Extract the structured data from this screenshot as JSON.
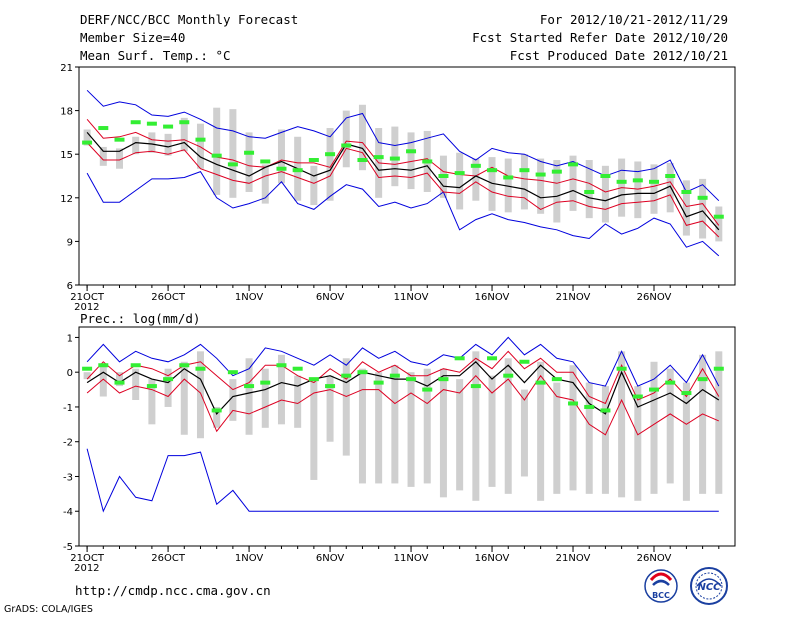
{
  "header": {
    "title": "DERF/NCC/BCC Monthly Forecast",
    "member_size": "Member Size=40",
    "variable": "Mean Surf. Temp.: °C",
    "period": "For 2012/10/21-2012/11/29",
    "started": "Fcst Started Refer Date 2012/10/20",
    "produced": "Fcst Produced Date 2012/10/21"
  },
  "footer": {
    "url": "http://cmdp.ncc.cma.gov.cn",
    "credit": "GrADS: COLA/IGES",
    "logo_bcc": "BCC",
    "logo_ncc": "NCC"
  },
  "colors": {
    "envelope": "#0000dd",
    "spread": "#dd0022",
    "mean": "#000000",
    "box": "#cfcfcf",
    "marker": "#33ee33"
  },
  "chart_data": [
    {
      "type": "line",
      "title": "Mean Surf. Temp.: °C",
      "x": [
        1,
        2,
        3,
        4,
        5,
        6,
        7,
        8,
        9,
        10,
        11,
        12,
        13,
        14,
        15,
        16,
        17,
        18,
        19,
        20,
        21,
        22,
        23,
        24,
        25,
        26,
        27,
        28,
        29,
        30,
        31,
        32,
        33,
        34,
        35,
        36,
        37,
        38,
        39,
        40
      ],
      "xtick_positions": [
        1,
        6,
        11,
        16,
        21,
        26,
        31,
        36
      ],
      "xtick_labels": [
        "21OCT",
        "26OCT",
        "1NOV",
        "6NOV",
        "11NOV",
        "16NOV",
        "21NOV",
        "26NOV"
      ],
      "xtick_year": "2012",
      "ylim": [
        6,
        21
      ],
      "yticks": [
        6,
        9,
        12,
        15,
        18,
        21
      ],
      "series": [
        {
          "name": "max",
          "values": [
            19.4,
            18.3,
            18.6,
            18.4,
            17.7,
            17.6,
            17.9,
            17.4,
            16.8,
            16.6,
            16.2,
            16.1,
            16.5,
            16.9,
            16.6,
            16.2,
            17.5,
            17.8,
            15.8,
            15.6,
            15.8,
            16.1,
            16.4,
            15.2,
            14.6,
            15.4,
            15.1,
            15.0,
            14.5,
            14.2,
            14.5,
            14.0,
            13.5,
            13.9,
            13.8,
            14.0,
            14.6,
            12.4,
            12.9,
            11.8
          ]
        },
        {
          "name": "upper",
          "values": [
            17.4,
            16.1,
            16.2,
            16.5,
            16.0,
            15.9,
            16.0,
            15.5,
            14.8,
            14.6,
            14.2,
            14.1,
            14.6,
            14.4,
            14.4,
            14.1,
            15.9,
            15.8,
            14.4,
            14.3,
            14.5,
            14.7,
            13.8,
            13.6,
            13.5,
            14.1,
            13.5,
            13.3,
            13.2,
            13.0,
            13.3,
            13.0,
            12.4,
            12.7,
            12.6,
            12.8,
            13.1,
            11.4,
            11.6,
            10.1
          ]
        },
        {
          "name": "mean",
          "values": [
            16.5,
            15.2,
            15.2,
            15.8,
            15.7,
            15.5,
            15.8,
            14.8,
            14.3,
            13.9,
            13.5,
            14.1,
            14.5,
            14.0,
            13.5,
            13.9,
            15.7,
            15.4,
            13.9,
            14.0,
            13.9,
            14.2,
            12.8,
            12.7,
            13.5,
            13.0,
            12.8,
            12.6,
            12.0,
            12.1,
            12.5,
            12.0,
            11.8,
            12.2,
            12.3,
            12.3,
            12.8,
            10.7,
            11.1,
            9.8
          ]
        },
        {
          "name": "lower",
          "values": [
            15.8,
            14.6,
            14.6,
            15.1,
            15.2,
            15.0,
            15.3,
            14.0,
            13.6,
            13.2,
            13.0,
            13.5,
            13.8,
            13.4,
            13.0,
            13.5,
            15.4,
            15.1,
            13.4,
            13.5,
            13.4,
            13.7,
            12.4,
            12.3,
            13.1,
            12.4,
            12.1,
            12.0,
            11.2,
            11.7,
            11.8,
            11.4,
            11.2,
            11.6,
            11.7,
            11.8,
            12.2,
            10.1,
            10.4,
            9.3
          ]
        },
        {
          "name": "min",
          "values": [
            13.7,
            11.7,
            11.7,
            12.5,
            13.3,
            13.3,
            13.4,
            13.8,
            12.0,
            11.3,
            11.6,
            12.0,
            13.1,
            11.6,
            11.2,
            12.1,
            12.9,
            12.6,
            11.4,
            11.7,
            11.3,
            11.6,
            12.4,
            9.8,
            10.5,
            10.9,
            10.5,
            10.3,
            10.0,
            9.8,
            9.4,
            9.2,
            10.2,
            9.5,
            9.9,
            10.6,
            10.2,
            8.6,
            9.0,
            8.0
          ]
        },
        {
          "name": "box_top",
          "values": [
            16.7,
            15.5,
            15.4,
            16.2,
            16.5,
            16.4,
            17.5,
            17.1,
            18.2,
            18.1,
            16.5,
            14.3,
            16.7,
            16.2,
            14.2,
            16.8,
            18.0,
            18.4,
            16.8,
            16.9,
            16.5,
            16.6,
            14.9,
            15.1,
            14.7,
            14.8,
            14.7,
            15.0,
            14.7,
            14.6,
            14.9,
            14.6,
            14.2,
            14.7,
            14.5,
            14.3,
            14.4,
            13.2,
            13.3,
            11.4
          ]
        },
        {
          "name": "box_bottom",
          "values": [
            15.6,
            14.2,
            14.0,
            15.0,
            15.1,
            14.9,
            15.2,
            14.0,
            12.2,
            12.0,
            12.4,
            11.6,
            13.0,
            11.8,
            11.5,
            11.8,
            14.1,
            13.9,
            12.0,
            12.8,
            12.6,
            12.4,
            12.0,
            11.2,
            11.8,
            11.1,
            11.0,
            11.2,
            10.9,
            10.3,
            11.1,
            10.6,
            10.3,
            10.7,
            10.6,
            10.9,
            11.0,
            9.4,
            9.2,
            9.0
          ]
        },
        {
          "name": "observed",
          "values": [
            15.8,
            16.8,
            16.0,
            17.2,
            17.1,
            16.9,
            17.2,
            16.0,
            14.9,
            14.3,
            15.1,
            14.5,
            14.0,
            13.9,
            14.6,
            15.0,
            15.6,
            14.6,
            14.8,
            14.7,
            15.2,
            14.5,
            13.5,
            13.7,
            14.2,
            13.9,
            13.4,
            13.9,
            13.6,
            13.8,
            14.3,
            12.4,
            13.5,
            13.1,
            13.2,
            13.1,
            13.5,
            12.4,
            12.0,
            10.7
          ]
        }
      ]
    },
    {
      "type": "line",
      "title": "Prec.: log(mm/d)",
      "x": [
        1,
        2,
        3,
        4,
        5,
        6,
        7,
        8,
        9,
        10,
        11,
        12,
        13,
        14,
        15,
        16,
        17,
        18,
        19,
        20,
        21,
        22,
        23,
        24,
        25,
        26,
        27,
        28,
        29,
        30,
        31,
        32,
        33,
        34,
        35,
        36,
        37,
        38,
        39,
        40
      ],
      "xtick_positions": [
        1,
        6,
        11,
        16,
        21,
        26,
        31,
        36
      ],
      "xtick_labels": [
        "21OCT",
        "26OCT",
        "1NOV",
        "6NOV",
        "11NOV",
        "16NOV",
        "21NOV",
        "26NOV"
      ],
      "xtick_year": "2012",
      "ylim": [
        -5,
        1.3
      ],
      "yticks": [
        -5,
        -4,
        -3,
        -2,
        -1,
        0,
        1
      ],
      "series": [
        {
          "name": "max",
          "values": [
            0.3,
            0.8,
            0.3,
            0.6,
            0.4,
            0.3,
            0.5,
            0.8,
            0.4,
            -0.1,
            0.1,
            0.7,
            0.6,
            0.4,
            0.2,
            0.5,
            0.2,
            0.7,
            0.4,
            0.6,
            0.3,
            0.2,
            0.5,
            0.4,
            0.8,
            0.5,
            1.0,
            0.5,
            0.8,
            0.4,
            0.3,
            -0.3,
            -0.4,
            0.6,
            -0.4,
            -0.2,
            0.2,
            -0.3,
            0.5,
            -0.4
          ]
        },
        {
          "name": "upper",
          "values": [
            -0.2,
            0.3,
            -0.1,
            0.2,
            0.1,
            -0.1,
            0.2,
            0.3,
            -0.1,
            -0.5,
            -0.3,
            0.2,
            0.2,
            -0.1,
            -0.3,
            0.1,
            -0.2,
            0.3,
            0.0,
            0.2,
            -0.1,
            -0.1,
            0.1,
            0.0,
            0.4,
            0.1,
            0.6,
            0.1,
            0.4,
            0.0,
            0.0,
            -0.7,
            -0.9,
            0.2,
            -0.8,
            -0.6,
            -0.2,
            -0.7,
            0.1,
            -0.7
          ]
        },
        {
          "name": "mean",
          "values": [
            -0.3,
            0.0,
            -0.3,
            0.0,
            -0.2,
            -0.3,
            0.1,
            -0.2,
            -1.2,
            -0.7,
            -0.6,
            -0.5,
            -0.3,
            -0.4,
            -0.2,
            -0.1,
            -0.3,
            0.0,
            -0.1,
            -0.2,
            -0.2,
            -0.4,
            -0.1,
            -0.1,
            0.3,
            -0.2,
            0.2,
            -0.3,
            0.2,
            -0.2,
            -0.3,
            -0.9,
            -1.2,
            0.0,
            -1.0,
            -0.8,
            -0.6,
            -0.9,
            -0.5,
            -0.8
          ]
        },
        {
          "name": "lower",
          "values": [
            -0.6,
            -0.2,
            -0.6,
            -0.4,
            -0.5,
            -0.7,
            -0.2,
            -0.6,
            -1.7,
            -1.1,
            -1.2,
            -1.0,
            -0.8,
            -0.9,
            -0.6,
            -0.5,
            -0.7,
            -0.5,
            -0.5,
            -0.9,
            -0.6,
            -0.9,
            -0.5,
            -0.6,
            -0.1,
            -0.6,
            -0.2,
            -0.8,
            -0.1,
            -0.7,
            -0.8,
            -1.5,
            -1.8,
            -0.8,
            -1.8,
            -1.5,
            -1.2,
            -1.5,
            -1.2,
            -1.4
          ]
        },
        {
          "name": "min",
          "values": [
            -2.2,
            -4.0,
            -3.0,
            -3.6,
            -3.7,
            -2.4,
            -2.4,
            -2.3,
            -3.8,
            -3.4,
            -4.0,
            -4.0,
            -4.0,
            -4.0,
            -4.0,
            -4.0,
            -4.0,
            -4.0,
            -4.0,
            -4.0,
            -4.0,
            -4.0,
            -4.0,
            -4.0,
            -4.0,
            -4.0,
            -4.0,
            -4.0,
            -4.0,
            -4.0,
            -4.0,
            -4.0,
            -4.0,
            -4.0,
            -4.0,
            -4.0,
            -4.0,
            -4.0,
            -4.0,
            -4.0
          ]
        },
        {
          "name": "box_top",
          "values": [
            0.0,
            0.2,
            0.0,
            0.1,
            -0.2,
            0.1,
            0.3,
            0.6,
            -1.0,
            -0.2,
            0.4,
            0.1,
            0.5,
            -0.1,
            -0.2,
            -0.1,
            0.4,
            0.1,
            0.0,
            0.2,
            0.0,
            0.1,
            0.1,
            -0.2,
            0.6,
            -0.1,
            0.4,
            -0.5,
            0.3,
            -0.3,
            0.2,
            -0.3,
            -0.4,
            0.6,
            -0.4,
            0.3,
            0.1,
            -0.3,
            0.5,
            0.6
          ]
        },
        {
          "name": "box_bottom",
          "values": [
            -0.2,
            -0.7,
            -0.4,
            -0.8,
            -1.5,
            -1.0,
            -1.8,
            -1.9,
            -1.6,
            -1.4,
            -1.8,
            -1.6,
            -1.5,
            -1.6,
            -3.1,
            -2.0,
            -2.4,
            -3.2,
            -3.2,
            -3.2,
            -3.3,
            -3.2,
            -3.6,
            -3.4,
            -3.7,
            -3.3,
            -3.5,
            -3.0,
            -3.7,
            -3.5,
            -3.4,
            -3.5,
            -3.5,
            -3.6,
            -3.7,
            -3.5,
            -3.2,
            -3.7,
            -3.5,
            -3.5
          ]
        },
        {
          "name": "observed",
          "values": [
            0.1,
            0.2,
            -0.3,
            0.2,
            -0.4,
            -0.2,
            0.2,
            0.1,
            -1.1,
            0.0,
            -0.4,
            -0.3,
            0.2,
            0.1,
            -0.2,
            -0.4,
            -0.1,
            0.0,
            -0.3,
            -0.1,
            -0.2,
            -0.5,
            -0.2,
            0.4,
            -0.4,
            0.4,
            -0.1,
            0.3,
            -0.3,
            -0.2,
            -0.9,
            -1.0,
            -1.1,
            0.1,
            -0.7,
            -0.5,
            -0.3,
            -0.6,
            -0.2,
            0.1
          ]
        }
      ]
    }
  ]
}
